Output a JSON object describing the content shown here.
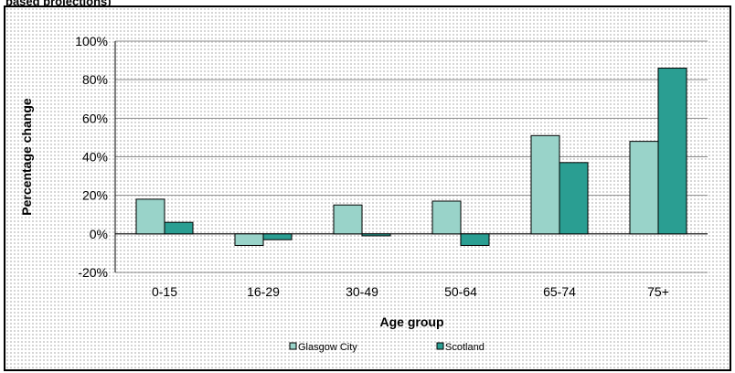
{
  "title_fragment": "based projections)",
  "chart_data": {
    "type": "bar",
    "title": "",
    "xlabel": "Age group",
    "ylabel": "Percentage change",
    "categories": [
      "0-15",
      "16-29",
      "30-49",
      "50-64",
      "65-74",
      "75+"
    ],
    "ylim": [
      -20,
      100
    ],
    "yticks": [
      -20,
      0,
      20,
      40,
      60,
      80,
      100
    ],
    "ytick_labels": [
      "-20%",
      "0%",
      "20%",
      "40%",
      "60%",
      "80%",
      "100%"
    ],
    "grid": true,
    "legend_position": "bottom",
    "series": [
      {
        "name": "Glasgow City",
        "color": "#99d3c9",
        "values": [
          18,
          -6,
          15,
          17,
          51,
          48
        ]
      },
      {
        "name": "Scotland",
        "color": "#2a9e92",
        "values": [
          6,
          -3,
          -1,
          -6,
          37,
          86
        ]
      }
    ]
  }
}
